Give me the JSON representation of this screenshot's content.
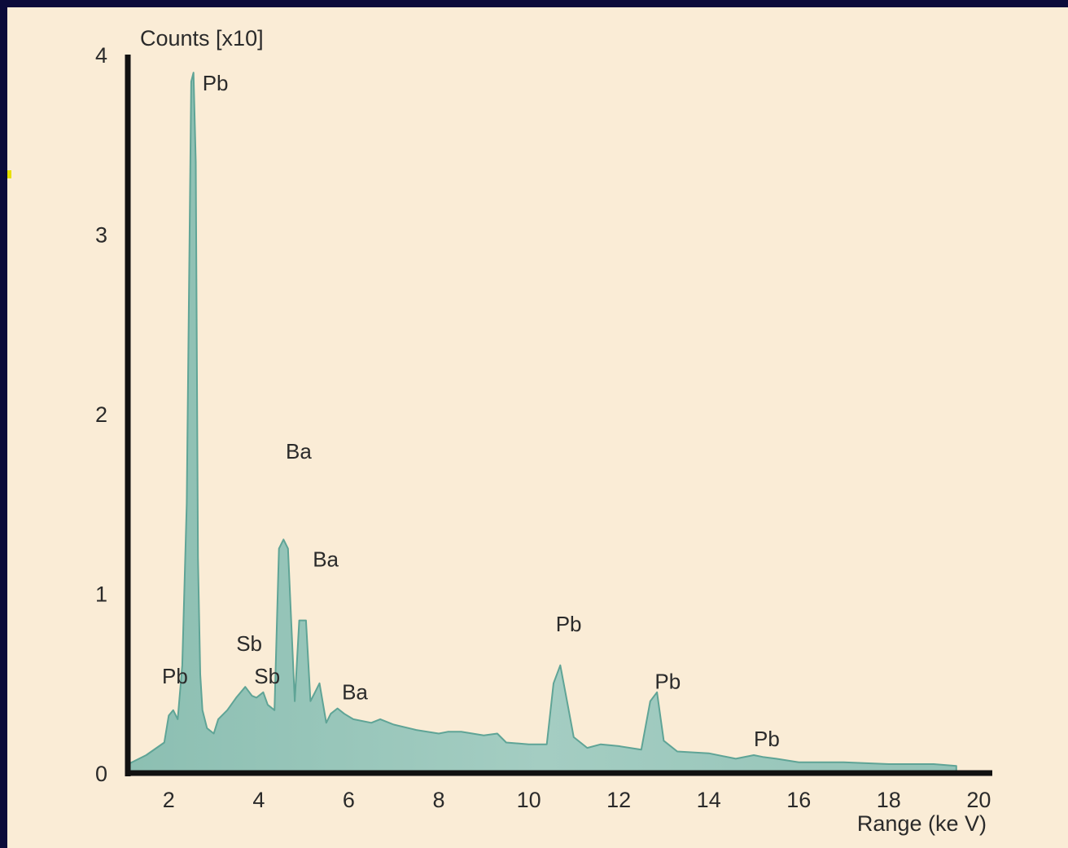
{
  "colors": {
    "border": "#0b0b3a",
    "background": "#faecd6",
    "fill": "#9dc7bb",
    "edge": "#5fa496",
    "axis": "#111111"
  },
  "chart_data": {
    "type": "area",
    "title": "",
    "xlabel": "Range (ke V)",
    "ylabel": "Counts [x10]",
    "xlim": [
      1.0,
      20.3
    ],
    "ylim": [
      0,
      4
    ],
    "xticks": [
      2,
      4,
      6,
      8,
      10,
      12,
      14,
      16,
      18,
      20
    ],
    "yticks": [
      0,
      1,
      2,
      3,
      4
    ],
    "grid": false,
    "legend": "none",
    "series": [
      {
        "x": [
          1.1,
          1.5,
          1.9,
          2.0,
          2.1,
          2.2,
          2.3,
          2.4,
          2.5,
          2.55,
          2.6,
          2.65,
          2.7,
          2.75,
          2.85,
          3.0,
          3.1,
          3.3,
          3.5,
          3.7,
          3.85,
          3.95,
          4.1,
          4.2,
          4.35,
          4.45,
          4.55,
          4.65,
          4.8,
          4.9,
          5.05,
          5.15,
          5.25,
          5.35,
          5.5,
          5.6,
          5.75,
          5.9,
          6.1,
          6.5,
          6.7,
          7.0,
          7.5,
          8.0,
          8.2,
          8.5,
          9.0,
          9.3,
          9.5,
          10.0,
          10.4,
          10.55,
          10.7,
          10.85,
          11.0,
          11.3,
          11.6,
          12.0,
          12.5,
          12.7,
          12.85,
          13.0,
          13.3,
          14.0,
          14.6,
          15.0,
          15.2,
          15.5,
          16.0,
          17.0,
          18.0,
          19.0,
          19.5
        ],
        "y": [
          0.05,
          0.1,
          0.17,
          0.32,
          0.35,
          0.3,
          0.6,
          1.5,
          3.85,
          3.9,
          3.4,
          1.2,
          0.55,
          0.35,
          0.25,
          0.22,
          0.3,
          0.35,
          0.42,
          0.48,
          0.43,
          0.42,
          0.45,
          0.38,
          0.35,
          1.25,
          1.3,
          1.25,
          0.4,
          0.85,
          0.85,
          0.4,
          0.45,
          0.5,
          0.28,
          0.33,
          0.36,
          0.33,
          0.3,
          0.28,
          0.3,
          0.27,
          0.24,
          0.22,
          0.23,
          0.23,
          0.21,
          0.22,
          0.17,
          0.16,
          0.16,
          0.5,
          0.6,
          0.4,
          0.2,
          0.14,
          0.16,
          0.15,
          0.13,
          0.4,
          0.45,
          0.18,
          0.12,
          0.11,
          0.08,
          0.1,
          0.09,
          0.08,
          0.06,
          0.06,
          0.05,
          0.05,
          0.04
        ]
      }
    ],
    "annotations": [
      {
        "text": "Pb",
        "x": 2.75,
        "y": 3.8
      },
      {
        "text": "Pb",
        "x": 1.85,
        "y": 0.5
      },
      {
        "text": "Sb",
        "x": 3.5,
        "y": 0.68
      },
      {
        "text": "Sb",
        "x": 3.9,
        "y": 0.5
      },
      {
        "text": "Ba",
        "x": 4.6,
        "y": 1.75
      },
      {
        "text": "Ba",
        "x": 5.2,
        "y": 1.15
      },
      {
        "text": "Ba",
        "x": 5.85,
        "y": 0.41
      },
      {
        "text": "Pb",
        "x": 10.6,
        "y": 0.79
      },
      {
        "text": "Pb",
        "x": 12.8,
        "y": 0.47
      },
      {
        "text": "Pb",
        "x": 15.0,
        "y": 0.15
      }
    ]
  }
}
